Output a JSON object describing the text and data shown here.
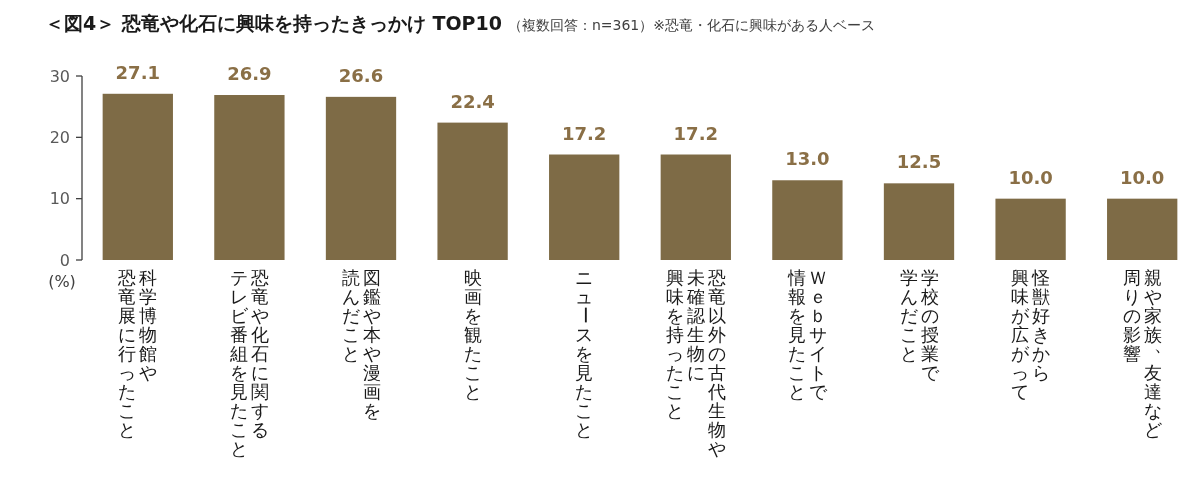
{
  "chart_data": {
    "type": "bar",
    "title": "＜図4＞ 恐竜や化石に興味を持ったきっかけ TOP10",
    "subtitle": "（複数回答：n=361）※恐竜・化石に興味がある人ベース",
    "ylabel": "(%)",
    "categories": [
      "科学博物館や恐竜展に行ったこと",
      "恐竜や化石に関するテレビ番組を見たこと",
      "図鑑や本や漫画を読んだこと",
      "映画を観たこと",
      "ニュースを見たこと",
      "恐竜以外の古代生物や未確認生物に興味を持ったこと",
      "Ｗｅｂサイトで情報を見たこと",
      "学校の授業で学んだこと",
      "怪獣好きから興味が広がって",
      "親や家族、友達など周りの影響"
    ],
    "series": [
      {
        "color": "#7e6b46",
        "values": [
          27.1,
          26.9,
          26.6,
          22.4,
          17.2,
          17.2,
          13.0,
          12.5,
          10.0,
          10.0
        ],
        "value_labels": [
          "27.1",
          "26.9",
          "26.6",
          "22.4",
          "17.2",
          "17.2",
          "13.0",
          "12.5",
          "10.0",
          "10.0"
        ]
      }
    ],
    "ylim": [
      0,
      30
    ],
    "yticks": [
      0,
      10,
      20,
      30
    ],
    "grid": false
  }
}
